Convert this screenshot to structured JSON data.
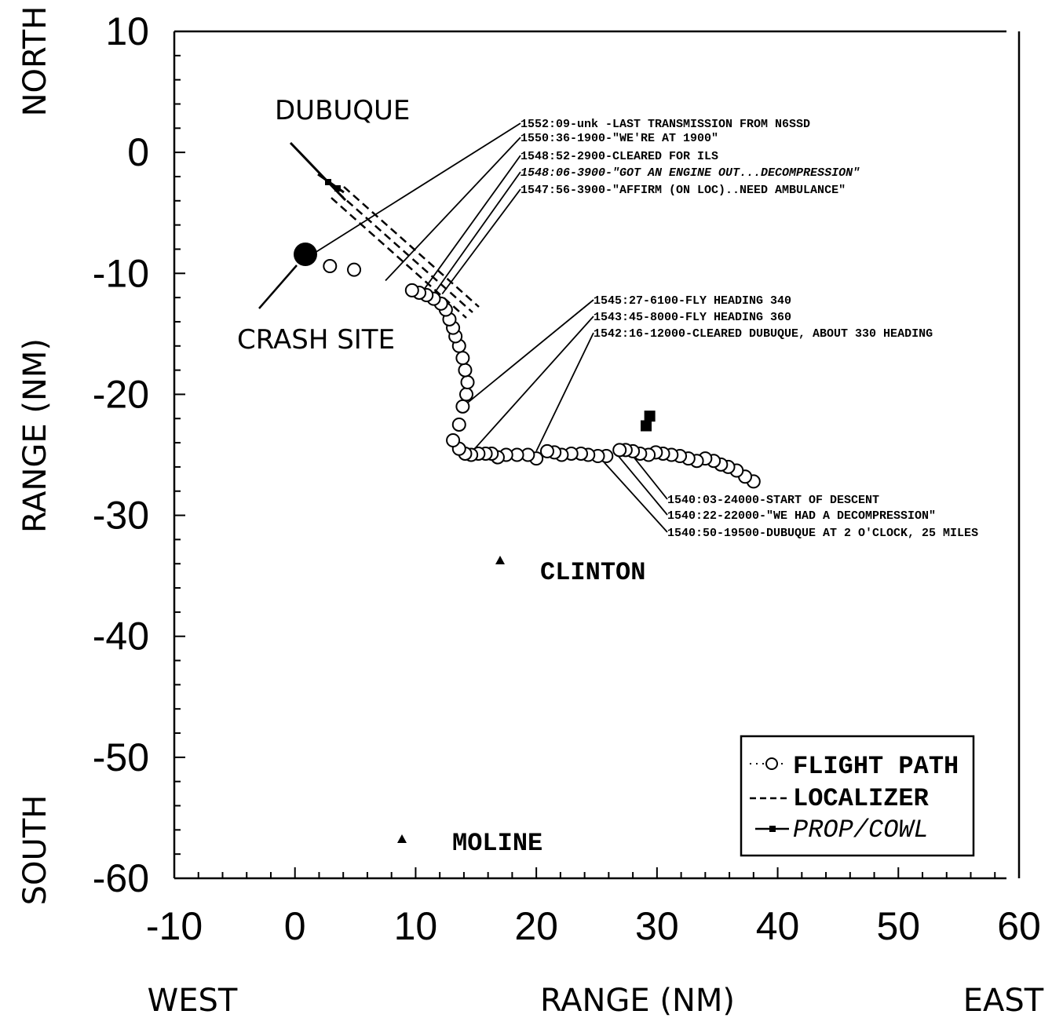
{
  "chart_data": {
    "type": "scatter",
    "xlabel": "RANGE (NM)",
    "ylabel": "RANGE (NM)",
    "x_end_labels": {
      "left": "WEST",
      "right": "EAST"
    },
    "y_end_labels": {
      "top": "NORTH",
      "bottom": "SOUTH"
    },
    "xlim": [
      -10,
      60
    ],
    "ylim": [
      -60,
      10
    ],
    "xticks": [
      "-10",
      "0",
      "10",
      "20",
      "30",
      "40",
      "50",
      "60"
    ],
    "yticks": [
      "10",
      "0",
      "-10",
      "-20",
      "-30",
      "-40",
      "-50",
      "-60"
    ],
    "legend": {
      "position": "bottom-right",
      "entries": [
        "FLIGHT PATH",
        "LOCALIZER",
        "PROP/COWL"
      ]
    },
    "places": [
      {
        "name": "DUBUQUE",
        "x": 1,
        "y": 3.5
      },
      {
        "name": "CRASH SITE",
        "x": 1,
        "y": -8.5
      },
      {
        "name": "CLINTON",
        "x": 17,
        "y": -34
      },
      {
        "name": "MOLINE",
        "x": 9,
        "y": -57
      }
    ],
    "series": [
      {
        "name": "FLIGHT PATH",
        "points": [
          [
            38.0,
            -27.2
          ],
          [
            37.3,
            -26.8
          ],
          [
            36.6,
            -26.3
          ],
          [
            35.9,
            -26.0
          ],
          [
            35.3,
            -25.8
          ],
          [
            34.7,
            -25.5
          ],
          [
            34.0,
            -25.3
          ],
          [
            33.3,
            -25.5
          ],
          [
            32.6,
            -25.3
          ],
          [
            31.9,
            -25.1
          ],
          [
            31.2,
            -25.0
          ],
          [
            30.5,
            -24.9
          ],
          [
            29.9,
            -24.8
          ],
          [
            29.3,
            -25.0
          ],
          [
            28.6,
            -24.9
          ],
          [
            28.0,
            -24.7
          ],
          [
            27.4,
            -24.6
          ],
          [
            26.9,
            -24.6
          ],
          [
            25.8,
            -25.1
          ],
          [
            25.1,
            -25.1
          ],
          [
            24.3,
            -25.0
          ],
          [
            23.7,
            -24.9
          ],
          [
            22.9,
            -24.9
          ],
          [
            22.1,
            -25.0
          ],
          [
            21.5,
            -24.8
          ],
          [
            20.9,
            -24.7
          ],
          [
            20.0,
            -25.3
          ],
          [
            19.3,
            -25.0
          ],
          [
            18.4,
            -25.0
          ],
          [
            17.5,
            -25.0
          ],
          [
            16.8,
            -25.2
          ],
          [
            16.3,
            -24.9
          ],
          [
            15.8,
            -24.9
          ],
          [
            15.2,
            -24.9
          ],
          [
            14.6,
            -25.0
          ],
          [
            14.1,
            -24.9
          ],
          [
            13.6,
            -24.5
          ],
          [
            13.1,
            -23.8
          ],
          [
            13.6,
            -22.5
          ],
          [
            13.9,
            -21.0
          ],
          [
            14.2,
            -20.0
          ],
          [
            14.3,
            -19.0
          ],
          [
            14.1,
            -18.0
          ],
          [
            13.9,
            -17.0
          ],
          [
            13.6,
            -16.0
          ],
          [
            13.3,
            -15.2
          ],
          [
            13.1,
            -14.5
          ],
          [
            12.8,
            -13.8
          ],
          [
            12.5,
            -13.0
          ],
          [
            12.1,
            -12.5
          ],
          [
            11.5,
            -12.1
          ],
          [
            10.9,
            -11.8
          ],
          [
            10.3,
            -11.6
          ],
          [
            9.7,
            -11.4
          ],
          [
            4.9,
            -9.7
          ],
          [
            2.9,
            -9.4
          ]
        ]
      },
      {
        "name": "LOCALIZER",
        "angle_deg_from_north": 330
      },
      {
        "name": "PROP/COWL",
        "points": [
          [
            29.1,
            -22.6
          ],
          [
            29.4,
            -21.8
          ]
        ]
      }
    ],
    "crash_site": {
      "x": 1,
      "y": -8.5
    },
    "annotations": [
      {
        "text": "1552:09-unk -LAST TRANSMISSION FROM N6SSD",
        "x": 1,
        "y": -8.7
      },
      {
        "text": "1550:36-1900-\"WE'RE AT 1900\"",
        "x": 7.5,
        "y": -10.6
      },
      {
        "text": "1548:52-2900-CLEARED FOR ILS",
        "x": 10.5,
        "y": -11.6
      },
      {
        "text": "1548:06-3900-\"GOT AN ENGINE OUT...DECOMPRESSION\"",
        "x": 11.5,
        "y": -11.7
      },
      {
        "text": "1547:56-3900-\"AFFIRM (ON LOC)..NEED AMBULANCE\"",
        "x": 12.2,
        "y": -11.7
      },
      {
        "text": "1545:27-6100-FLY HEADING 340",
        "x": 14.3,
        "y": -20.7
      },
      {
        "text": "1543:45-8000-FLY HEADING 360",
        "x": 14.8,
        "y": -24.6
      },
      {
        "text": "1542:16-12000-CLEARED DUBUQUE, ABOUT 330 HEADING",
        "x": 20.0,
        "y": -24.7
      },
      {
        "text": "1540:03-24000-START OF DESCENT",
        "x": 27.6,
        "y": -24.6
      },
      {
        "text": "1540:22-22000-\"WE HAD A DECOMPRESSION\"",
        "x": 26.8,
        "y": -25.1
      },
      {
        "text": "1540:50-19500-DUBUQUE AT 2 O'CLOCK, 25 MILES",
        "x": 25.6,
        "y": -25.6
      }
    ]
  }
}
